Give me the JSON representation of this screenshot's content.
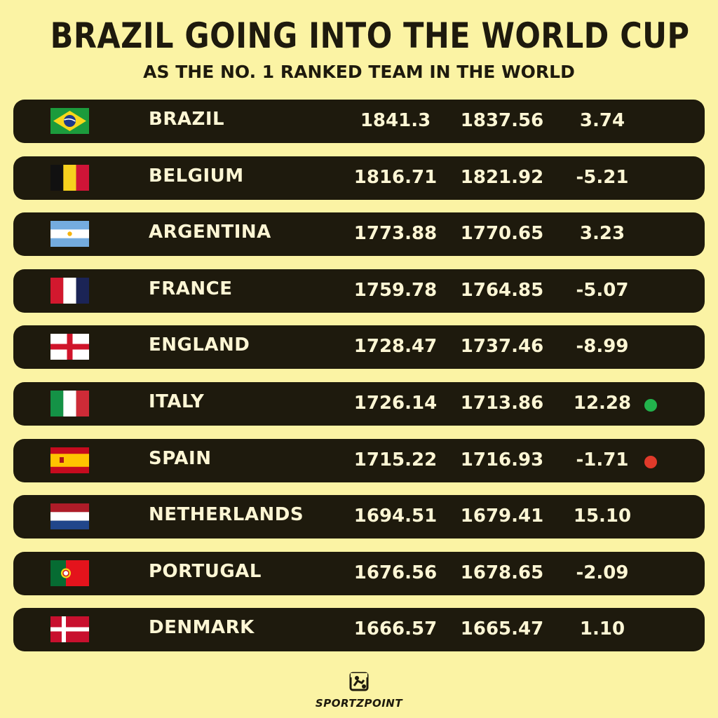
{
  "header": {
    "title": "BRAZIL GOING INTO THE WORLD CUP",
    "subtitle": "AS THE NO. 1 RANKED TEAM IN THE WORLD"
  },
  "rows": [
    {
      "team": "BRAZIL",
      "flag": "brazil-flag-icon",
      "c1": "1841.3",
      "c2": "1837.56",
      "c3": "3.74"
    },
    {
      "team": "BELGIUM",
      "flag": "belgium-flag-icon",
      "c1": "1816.71",
      "c2": "1821.92",
      "c3": "-5.21"
    },
    {
      "team": "ARGENTINA",
      "flag": "argentina-flag-icon",
      "c1": "1773.88",
      "c2": "1770.65",
      "c3": "3.23"
    },
    {
      "team": "FRANCE",
      "flag": "france-flag-icon",
      "c1": "1759.78",
      "c2": "1764.85",
      "c3": "-5.07"
    },
    {
      "team": "ENGLAND",
      "flag": "england-flag-icon",
      "c1": "1728.47",
      "c2": "1737.46",
      "c3": "-8.99"
    },
    {
      "team": "ITALY",
      "flag": "italy-flag-icon",
      "c1": "1726.14",
      "c2": "1713.86",
      "c3": "12.28",
      "indicator": "#22b24c"
    },
    {
      "team": "SPAIN",
      "flag": "spain-flag-icon",
      "c1": "1715.22",
      "c2": "1716.93",
      "c3": "-1.71",
      "indicator": "#e03a2a"
    },
    {
      "team": "NETHERLANDS",
      "flag": "netherlands-flag-icon",
      "c1": "1694.51",
      "c2": "1679.41",
      "c3": "15.10"
    },
    {
      "team": "PORTUGAL",
      "flag": "portugal-flag-icon",
      "c1": "1676.56",
      "c2": "1678.65",
      "c3": "-2.09"
    },
    {
      "team": "DENMARK",
      "flag": "denmark-flag-icon",
      "c1": "1666.57",
      "c2": "1665.47",
      "c3": "1.10"
    }
  ],
  "footer": {
    "logo_text": "SPORTZPOINT",
    "logo_icon": "sportzpoint-logo-icon"
  },
  "colors": {
    "background": "#fbf3a4",
    "row": "#1e1a0d",
    "row_text": "#fdf6d4",
    "up": "#22b24c",
    "down": "#e03a2a"
  }
}
